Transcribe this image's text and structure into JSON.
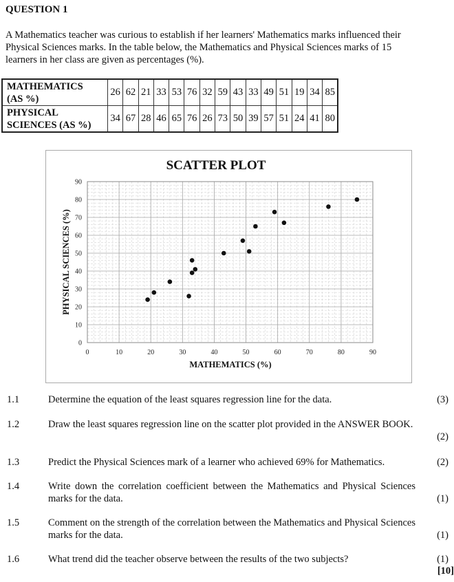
{
  "heading": "QUESTION 1",
  "intro": "A Mathematics teacher was curious to establish if her learners' Mathematics marks influenced their Physical Sciences marks. In the table below, the Mathematics and Physical Sciences marks of 15 learners in her class are given as percentages (%).",
  "table": {
    "row1_label_a": "MATHEMATICS",
    "row1_label_b": "(AS %)",
    "row2_label_a": "PHYSICAL",
    "row2_label_b": "SCIENCES (AS %)",
    "maths": [
      "26",
      "62",
      "21",
      "33",
      "53",
      "76",
      "32",
      "59",
      "43",
      "33",
      "49",
      "51",
      "19",
      "34",
      "85"
    ],
    "science": [
      "34",
      "67",
      "28",
      "46",
      "65",
      "76",
      "26",
      "73",
      "50",
      "39",
      "57",
      "51",
      "24",
      "41",
      "80"
    ]
  },
  "chart_data": {
    "type": "scatter",
    "title": "SCATTER PLOT",
    "xlabel": "MATHEMATICS (%)",
    "ylabel": "PHYSICAL SCIENCES (%)",
    "xlim": [
      0,
      90
    ],
    "ylim": [
      0,
      90
    ],
    "xticks": [
      "0",
      "10",
      "20",
      "30",
      "40",
      "50",
      "60",
      "70",
      "80",
      "90"
    ],
    "yticks": [
      "0",
      "10",
      "20",
      "30",
      "40",
      "50",
      "60",
      "70",
      "80",
      "90"
    ],
    "grid": true,
    "x": [
      26,
      62,
      21,
      33,
      53,
      76,
      32,
      59,
      43,
      33,
      49,
      51,
      19,
      34,
      85
    ],
    "y": [
      34,
      67,
      28,
      46,
      65,
      76,
      26,
      73,
      50,
      39,
      57,
      51,
      24,
      41,
      80
    ]
  },
  "questions": [
    {
      "num": "1.1",
      "text": "Determine the equation of the least squares regression line for the data.",
      "mark": "(3)"
    },
    {
      "num": "1.2",
      "text": "Draw the least squares regression line on the scatter plot provided in the ANSWER BOOK.",
      "mark": "(2)"
    },
    {
      "num": "1.3",
      "text": "Predict the Physical Sciences mark of a learner who achieved 69% for Mathematics.",
      "mark": "(2)"
    },
    {
      "num": "1.4",
      "text": "Write down the correlation coefficient between the Mathematics and Physical Sciences marks for the data.",
      "mark": "(1)"
    },
    {
      "num": "1.5",
      "text": "Comment on the strength of the correlation between the Mathematics and Physical Sciences marks for the data.",
      "mark": "(1)"
    },
    {
      "num": "1.6",
      "text": "What trend did the teacher observe between the results of the two subjects?",
      "mark": "(1)"
    }
  ],
  "total": "[10]"
}
